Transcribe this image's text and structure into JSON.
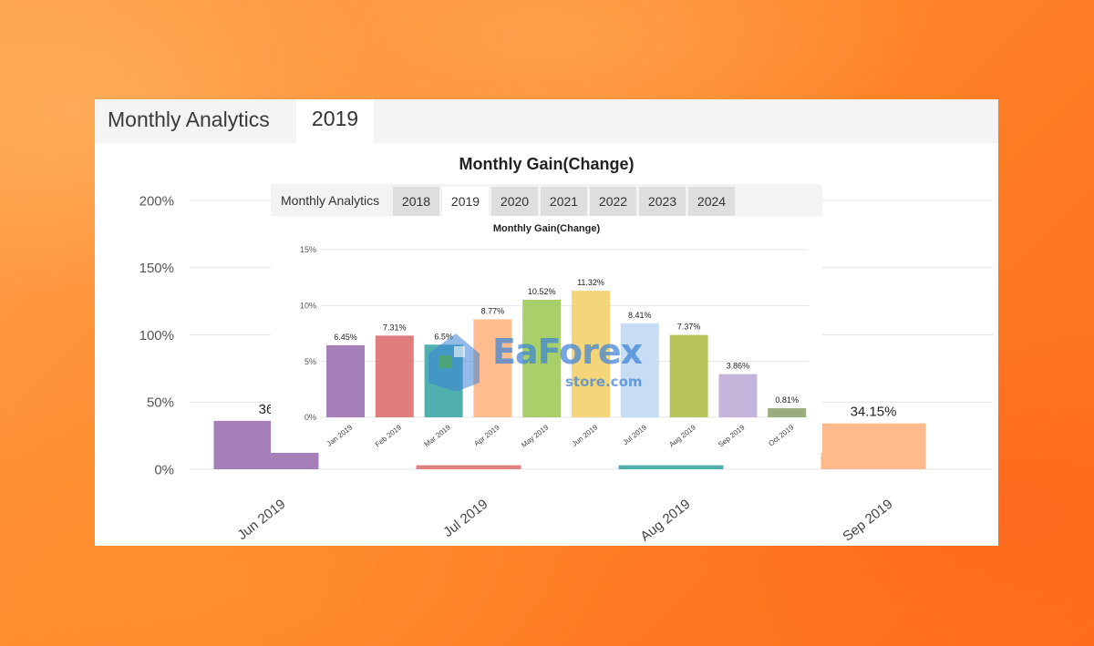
{
  "background_card": {
    "header_title": "Monthly Analytics",
    "active_tab": "2019",
    "chart_title": "Monthly Gain(Change)"
  },
  "foreground_card": {
    "header_title": "Monthly Analytics",
    "tabs": [
      "2018",
      "2019",
      "2020",
      "2021",
      "2022",
      "2023",
      "2024"
    ],
    "active_tab": "2019",
    "chart_title": "Monthly Gain(Change)"
  },
  "watermark": {
    "brand": "EaForex",
    "sub": "store.com"
  },
  "chart_data": [
    {
      "type": "bar",
      "title": "Monthly Gain(Change)",
      "categories": [
        "Jun 2019",
        "Jul 2019",
        "Aug 2019",
        "Sep 2019"
      ],
      "values": [
        36,
        3,
        3,
        34.15
      ],
      "value_labels": [
        "36",
        "",
        "",
        "34.15%"
      ],
      "colors": [
        "#a57fb8",
        "#e08080",
        "#4fb0ad",
        "#ffba8c"
      ],
      "yticks": [
        "0%",
        "50%",
        "100%",
        "150%",
        "200%"
      ],
      "ylim": [
        0,
        200
      ],
      "grid": true
    },
    {
      "type": "bar",
      "title": "Monthly Gain(Change)",
      "categories": [
        "Jan 2019",
        "Feb 2019",
        "Mar 2019",
        "Apr 2019",
        "May 2019",
        "Jun 2019",
        "Jul 2019",
        "Aug 2019",
        "Sep 2019",
        "Oct 2019"
      ],
      "values": [
        6.45,
        7.31,
        6.5,
        8.77,
        10.52,
        11.32,
        8.41,
        7.37,
        3.86,
        0.81
      ],
      "value_labels": [
        "6.45%",
        "7.31%",
        "6.5%",
        "8.77%",
        "10.52%",
        "11.32%",
        "8.41%",
        "7.37%",
        "3.86%",
        "0.81%"
      ],
      "colors": [
        "#a57fb8",
        "#e07d7d",
        "#4fb0ad",
        "#ffbd8f",
        "#a8cf69",
        "#f5d57a",
        "#c7ddf3",
        "#b7c45a",
        "#c4b4da",
        "#9aab7c"
      ],
      "yticks": [
        "0%",
        "5%",
        "10%",
        "15%"
      ],
      "ylim": [
        0,
        15
      ],
      "grid": true
    }
  ]
}
